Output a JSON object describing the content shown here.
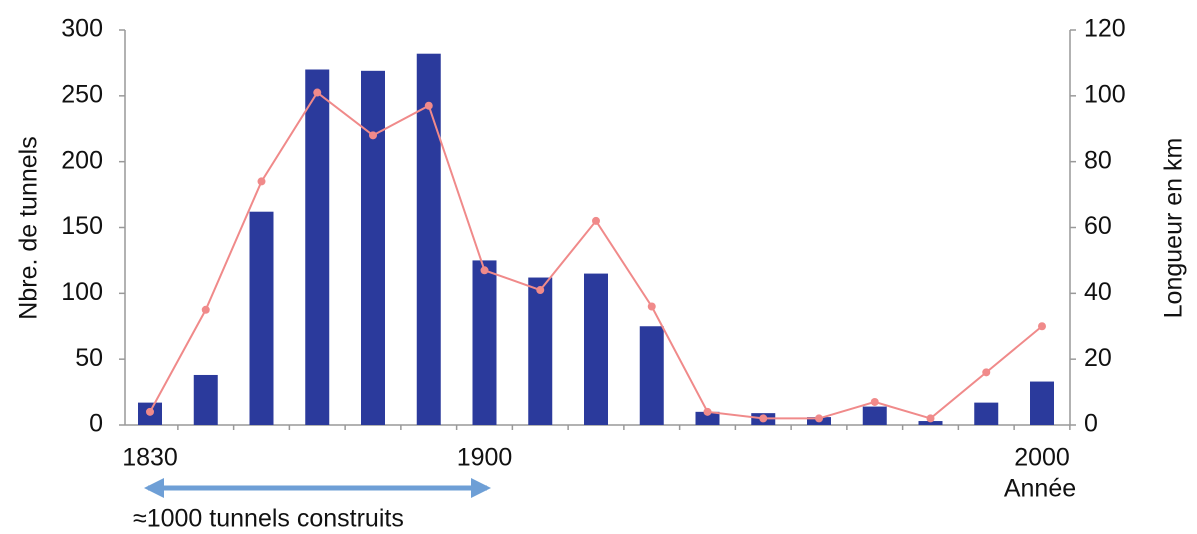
{
  "chart_data": {
    "type": "bar",
    "ylabel": "Nbre. de tunnels",
    "y2label": "Longueur en km",
    "xlabel": "Année",
    "annotation": "≈1000 tunnels construits",
    "categories": [
      "1830",
      null,
      null,
      null,
      null,
      null,
      "1900",
      null,
      null,
      null,
      null,
      null,
      null,
      null,
      null,
      null,
      "2000"
    ],
    "series": [
      {
        "type": "bar",
        "color": "#2b3a9c",
        "values": [
          17,
          38,
          162,
          270,
          269,
          282,
          125,
          112,
          115,
          75,
          10,
          9,
          6,
          14,
          3,
          17,
          33
        ]
      },
      {
        "type": "line",
        "axis": "y2",
        "color": "#f08a8a",
        "values": [
          4,
          35,
          74,
          101,
          88,
          97,
          47,
          41,
          62,
          36,
          4,
          2,
          2,
          7,
          2,
          16,
          30
        ]
      }
    ],
    "ylim": [
      0,
      300
    ],
    "yticks": [
      0,
      50,
      100,
      150,
      200,
      250,
      300
    ],
    "y2lim": [
      0,
      120
    ],
    "y2ticks": [
      0,
      20,
      40,
      60,
      80,
      100,
      120
    ],
    "grid": false
  }
}
